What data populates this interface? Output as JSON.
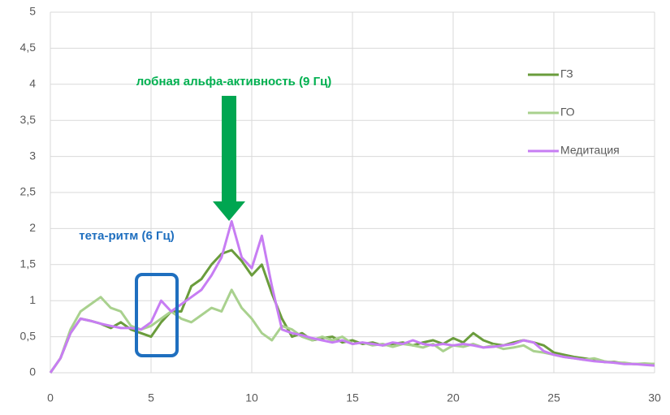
{
  "chart_data": {
    "type": "line",
    "x": [
      0,
      0.5,
      1,
      1.5,
      2,
      2.5,
      3,
      3.5,
      4,
      4.5,
      5,
      5.5,
      6,
      6.5,
      7,
      7.5,
      8,
      8.5,
      9,
      9.5,
      10,
      10.5,
      11,
      11.5,
      12,
      12.5,
      13,
      13.5,
      14,
      14.5,
      15,
      15.5,
      16,
      16.5,
      17,
      17.5,
      18,
      18.5,
      19,
      19.5,
      20,
      20.5,
      21,
      21.5,
      22,
      22.5,
      23,
      23.5,
      24,
      24.5,
      25,
      25.5,
      26,
      26.5,
      27,
      27.5,
      28,
      28.5,
      29,
      29.5,
      30
    ],
    "series": [
      {
        "name": "ГЗ",
        "color": "#6a9c3c",
        "values": [
          0,
          0.2,
          0.55,
          0.75,
          0.72,
          0.68,
          0.62,
          0.7,
          0.6,
          0.55,
          0.5,
          0.7,
          0.85,
          0.85,
          1.2,
          1.3,
          1.5,
          1.65,
          1.7,
          1.55,
          1.35,
          1.5,
          1.1,
          0.75,
          0.5,
          0.55,
          0.45,
          0.48,
          0.5,
          0.42,
          0.45,
          0.4,
          0.42,
          0.38,
          0.4,
          0.42,
          0.38,
          0.42,
          0.45,
          0.4,
          0.48,
          0.42,
          0.55,
          0.45,
          0.4,
          0.38,
          0.42,
          0.45,
          0.42,
          0.38,
          0.28,
          0.25,
          0.22,
          0.2,
          0.18,
          0.15,
          0.15,
          0.13,
          0.12,
          0.12,
          0.12
        ]
      },
      {
        "name": "ГО",
        "color": "#a9d18e",
        "values": [
          0,
          0.2,
          0.6,
          0.85,
          0.95,
          1.05,
          0.9,
          0.85,
          0.65,
          0.6,
          0.65,
          0.75,
          0.85,
          0.75,
          0.7,
          0.8,
          0.9,
          0.85,
          1.15,
          0.9,
          0.75,
          0.55,
          0.45,
          0.65,
          0.6,
          0.5,
          0.45,
          0.5,
          0.45,
          0.5,
          0.4,
          0.42,
          0.38,
          0.4,
          0.36,
          0.4,
          0.38,
          0.35,
          0.4,
          0.3,
          0.38,
          0.36,
          0.4,
          0.35,
          0.38,
          0.33,
          0.35,
          0.38,
          0.3,
          0.28,
          0.25,
          0.22,
          0.2,
          0.18,
          0.2,
          0.16,
          0.14,
          0.14,
          0.12,
          0.13,
          0.12
        ]
      },
      {
        "name": "Медитация",
        "color": "#c77df3",
        "values": [
          0,
          0.2,
          0.55,
          0.75,
          0.72,
          0.68,
          0.65,
          0.62,
          0.62,
          0.6,
          0.7,
          1.0,
          0.85,
          0.95,
          1.05,
          1.15,
          1.35,
          1.6,
          2.1,
          1.6,
          1.45,
          1.9,
          1.2,
          0.6,
          0.55,
          0.52,
          0.48,
          0.45,
          0.42,
          0.45,
          0.4,
          0.42,
          0.4,
          0.38,
          0.42,
          0.4,
          0.45,
          0.4,
          0.38,
          0.4,
          0.38,
          0.4,
          0.38,
          0.35,
          0.36,
          0.38,
          0.4,
          0.45,
          0.42,
          0.3,
          0.25,
          0.22,
          0.2,
          0.18,
          0.16,
          0.15,
          0.14,
          0.12,
          0.12,
          0.11,
          0.1
        ]
      }
    ],
    "xlim": [
      0,
      30
    ],
    "xticks": [
      0,
      5,
      10,
      15,
      20,
      25,
      30
    ],
    "ylim": [
      0,
      5
    ],
    "yticks": [
      0,
      {
        "value": 0.5,
        "label": "0,5"
      },
      1,
      {
        "value": 1.5,
        "label": "1,5"
      },
      2,
      {
        "value": 2.5,
        "label": "2,5"
      },
      3,
      {
        "value": 3.5,
        "label": "3,5"
      },
      4,
      {
        "value": 4.5,
        "label": "4,5"
      },
      5
    ],
    "grid": true,
    "legend": "right",
    "annotations": [
      "лобная альфа-активность (9 Гц)",
      "тета-ритм (6 Гц)"
    ]
  }
}
